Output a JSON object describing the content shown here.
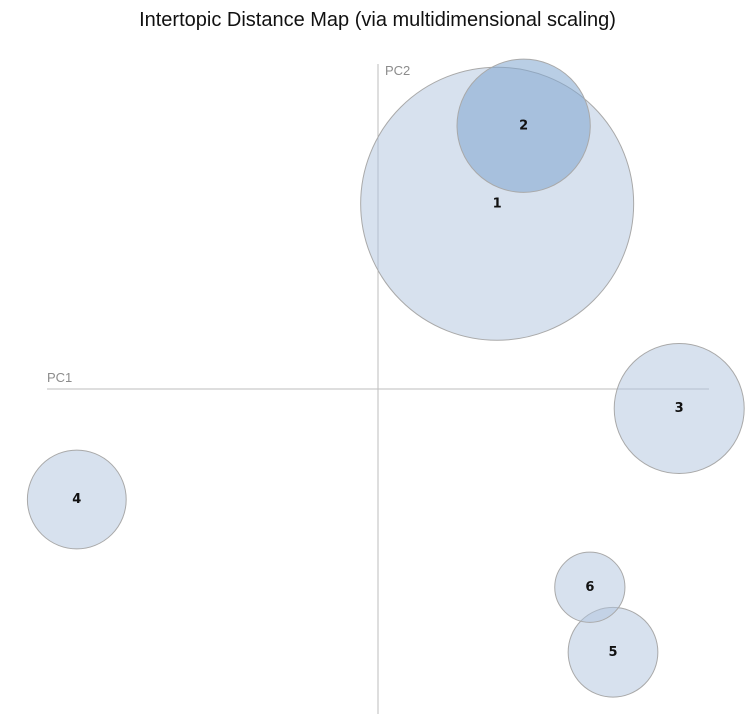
{
  "chart_data": {
    "type": "scatter",
    "title": "Intertopic Distance Map (via multidimensional scaling)",
    "xlabel": "PC1",
    "ylabel": "PC2",
    "xlim": [
      -1,
      1
    ],
    "ylim": [
      -1,
      1
    ],
    "grid": false,
    "colors": {
      "fill": "#b0c4de",
      "selected_fill": "#7fa6cf",
      "stroke": "#a9a9a9",
      "axis": "#bdbdbd"
    },
    "topics": [
      {
        "label": "1",
        "x": 0.36,
        "y": 0.57,
        "size": 0.42,
        "selected": false
      },
      {
        "label": "2",
        "x": 0.44,
        "y": 0.81,
        "size": 0.205,
        "selected": true
      },
      {
        "label": "3",
        "x": 0.91,
        "y": -0.06,
        "size": 0.2,
        "selected": false
      },
      {
        "label": "4",
        "x": -0.91,
        "y": -0.34,
        "size": 0.152,
        "selected": false
      },
      {
        "label": "5",
        "x": 0.71,
        "y": -0.81,
        "size": 0.138,
        "selected": false
      },
      {
        "label": "6",
        "x": 0.64,
        "y": -0.61,
        "size": 0.108,
        "selected": false
      }
    ]
  }
}
